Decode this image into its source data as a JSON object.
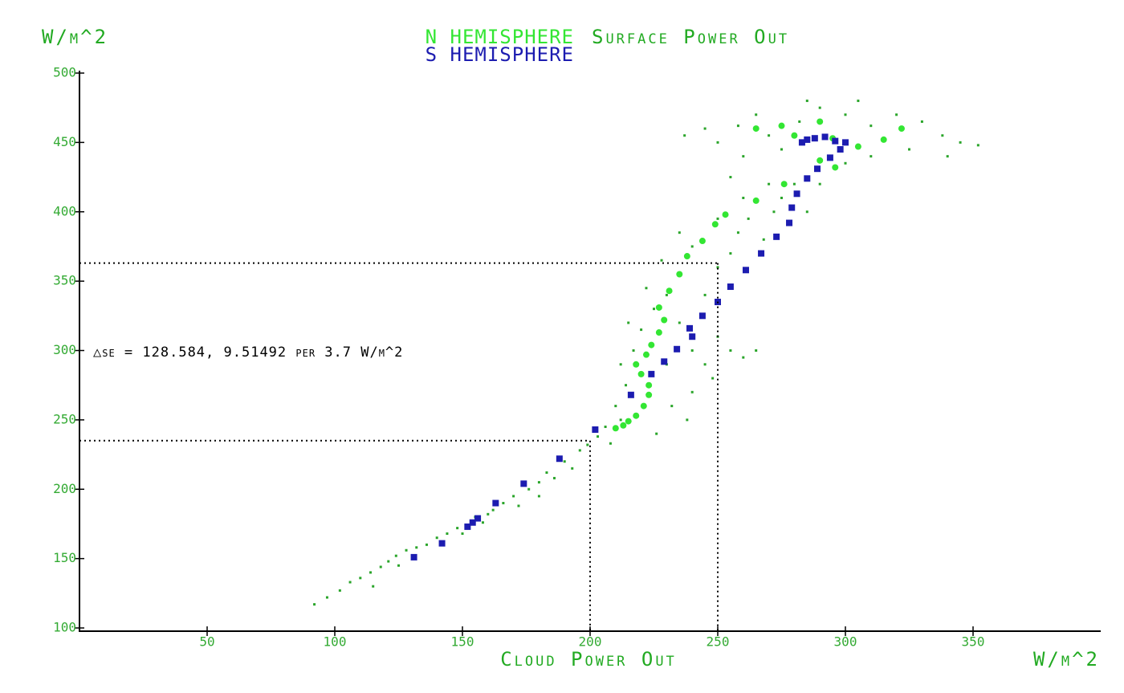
{
  "chart_data": {
    "type": "scatter",
    "title": "Surface Power Out",
    "y_label": "W/m^2",
    "x_label": "Cloud Power Out",
    "x_unit": "W/m^2",
    "annotation": "△se = 128.584, 9.51492 per 3.7 W/m^2",
    "xlim": [
      0,
      400
    ],
    "ylim": [
      100,
      500
    ],
    "xticks": [
      50,
      100,
      150,
      200,
      250,
      300,
      350
    ],
    "yticks": [
      100,
      150,
      200,
      250,
      300,
      350,
      400,
      450,
      500
    ],
    "reference_lines": [
      {
        "x": 200,
        "y": 235
      },
      {
        "x": 250,
        "y": 363
      }
    ],
    "series": [
      {
        "color": "#2aa52a",
        "marker": "dot",
        "x": [
          92,
          97,
          102,
          106,
          110,
          114,
          118,
          121,
          124,
          128,
          132,
          136,
          140,
          144,
          148,
          150,
          155,
          158,
          162,
          166,
          170,
          172,
          176,
          180,
          183,
          186,
          190,
          193,
          196,
          199,
          203,
          206,
          208,
          212,
          180,
          160,
          125,
          115,
          210,
          214,
          212,
          217,
          220,
          215,
          225,
          230,
          222,
          235,
          240,
          245,
          250,
          255,
          260,
          265,
          248,
          240,
          232,
          245,
          250,
          255,
          258,
          262,
          268,
          272,
          275,
          280,
          270,
          260,
          250,
          240,
          235,
          228,
          285,
          290,
          230,
          238,
          226,
          237,
          245,
          250,
          258,
          265,
          270,
          275,
          282,
          290,
          300,
          310,
          320,
          330,
          338,
          345,
          352,
          340,
          325,
          310,
          300,
          260,
          255,
          305,
          285
        ],
        "values": [
          117,
          122,
          127,
          133,
          136,
          140,
          144,
          148,
          152,
          156,
          158,
          160,
          165,
          168,
          172,
          168,
          180,
          176,
          185,
          190,
          195,
          188,
          200,
          205,
          212,
          208,
          220,
          215,
          228,
          232,
          238,
          245,
          233,
          250,
          195,
          182,
          145,
          130,
          260,
          275,
          290,
          300,
          315,
          320,
          330,
          340,
          345,
          320,
          300,
          290,
          310,
          300,
          295,
          300,
          280,
          270,
          260,
          340,
          360,
          370,
          385,
          395,
          380,
          400,
          410,
          420,
          420,
          410,
          395,
          375,
          385,
          365,
          400,
          420,
          290,
          250,
          240,
          455,
          460,
          450,
          462,
          470,
          455,
          445,
          465,
          475,
          470,
          462,
          470,
          465,
          455,
          450,
          448,
          440,
          445,
          440,
          435,
          440,
          425,
          480,
          480
        ]
      },
      {
        "name": "N HEMISPHERE",
        "color": "#33e633",
        "marker": "circle",
        "x": [
          210,
          213,
          215,
          218,
          221,
          223,
          223,
          220,
          218,
          222,
          224,
          227,
          229,
          227,
          231,
          235,
          238,
          244,
          249,
          253,
          265,
          276,
          290,
          296,
          305,
          315,
          322,
          290,
          275,
          265,
          280,
          295
        ],
        "values": [
          244,
          246,
          249,
          253,
          260,
          268,
          275,
          283,
          290,
          297,
          304,
          313,
          322,
          331,
          343,
          355,
          368,
          379,
          391,
          398,
          408,
          420,
          437,
          432,
          447,
          452,
          460,
          465,
          462,
          460,
          455,
          453
        ]
      },
      {
        "name": "S HEMISPHERE",
        "color": "#1c1cb0",
        "marker": "square",
        "x": [
          131,
          142,
          152,
          154,
          156,
          163,
          174,
          188,
          202,
          216,
          224,
          229,
          234,
          240,
          239,
          244,
          250,
          255,
          261,
          267,
          273,
          278,
          279,
          281,
          285,
          289,
          294,
          298,
          300,
          296,
          292,
          288,
          285,
          283
        ],
        "values": [
          151,
          161,
          173,
          176,
          179,
          190,
          204,
          222,
          243,
          268,
          283,
          292,
          301,
          310,
          316,
          325,
          335,
          346,
          358,
          370,
          382,
          392,
          403,
          413,
          424,
          431,
          439,
          445,
          450,
          451,
          454,
          453,
          452,
          450
        ]
      }
    ]
  }
}
